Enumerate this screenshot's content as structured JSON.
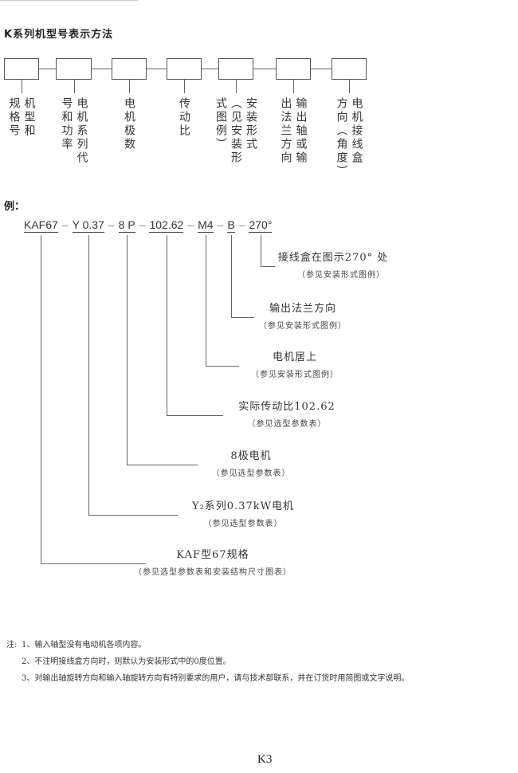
{
  "title": "K系列机型号表示方法",
  "scheme": [
    {
      "columns": [
        "机型和",
        "规格号"
      ]
    },
    {
      "columns": [
        "电机系列代",
        "号和功率"
      ]
    },
    {
      "columns": [
        "电机极数"
      ]
    },
    {
      "columns": [
        "传动比"
      ]
    },
    {
      "columns": [
        "安装形式",
        "（见安装形",
        "式图例）"
      ]
    },
    {
      "columns": [
        "输出轴或输",
        "出法兰方向"
      ]
    },
    {
      "columns": [
        "电机接线盒",
        "方向（角度）"
      ]
    }
  ],
  "example": {
    "label": "例：",
    "segments": [
      "KAF67",
      "Y 0.37",
      "8 P",
      "102.62",
      "M4",
      "B",
      "270°"
    ],
    "separator": "–",
    "annotations": [
      {
        "main": "接线盒在图示270° 处",
        "sub": "（参见安装形式图例）"
      },
      {
        "main": "输出法兰方向",
        "sub": "（参见安装形式图例）"
      },
      {
        "main": "电机居上",
        "sub": "（参见安装形式图例）"
      },
      {
        "main": "实际传动比102.62",
        "sub": "（参见选型参数表）"
      },
      {
        "main": "8极电机",
        "sub": "（参见选型参数表）"
      },
      {
        "main": "Y₂系列0.37kW电机",
        "sub": "（参见选型参数表）"
      },
      {
        "main": "KAF型67规格",
        "sub": "（参见选型参数表和安装结构尺寸图表）"
      }
    ]
  },
  "notes": {
    "label": "注:",
    "items": [
      "1、输入轴型没有电动机各项内容。",
      "2、不注明接线盒方向时，则默认为安装形式中的0度位置。",
      "3、对输出轴旋转方向和输入轴旋转方向有特别要求的用户，请与技术部联系，并在订货时用简图或文字说明。"
    ]
  },
  "page_number": "K3"
}
